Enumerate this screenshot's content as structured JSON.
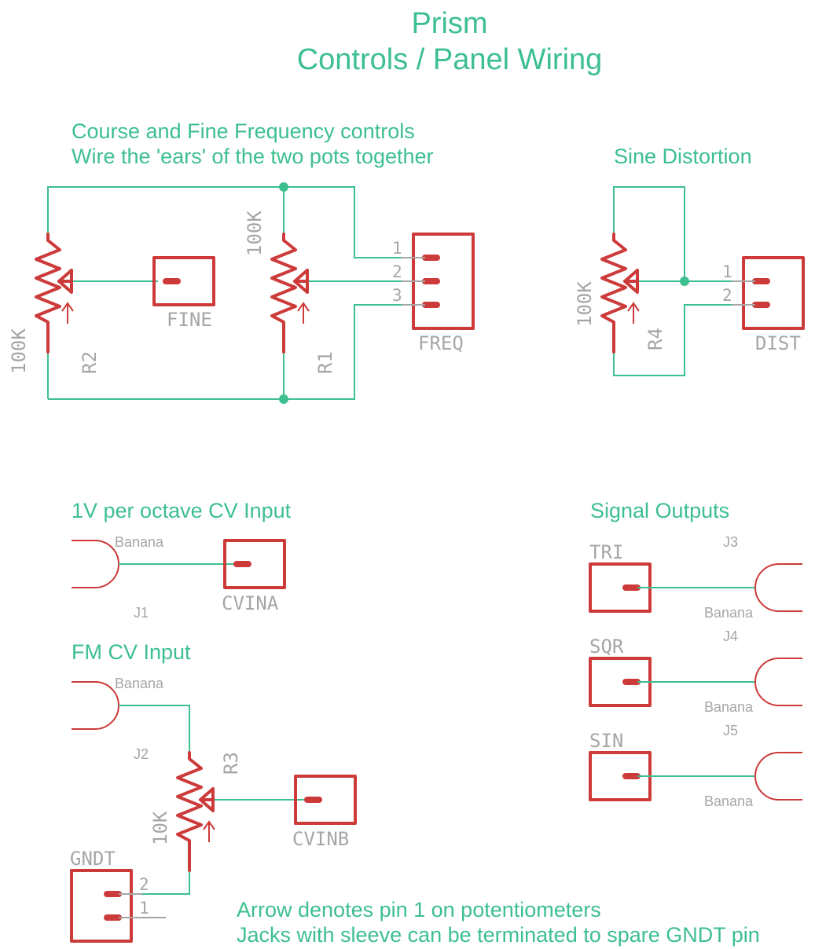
{
  "title": {
    "line1": "Prism",
    "line2": "Controls / Panel Wiring"
  },
  "notes": {
    "freq_line1": "Course and Fine Frequency controls",
    "freq_line2": "Wire the 'ears' of the two pots together",
    "dist": "Sine Distortion",
    "voct": "1V per octave CV Input",
    "fm": "FM CV Input",
    "outputs": "Signal Outputs",
    "footer_line1": "Arrow denotes pin 1 on potentiometers",
    "footer_line2": "Jacks with sleeve can be terminated to spare GNDT pin"
  },
  "parts": {
    "r2_name": "R2",
    "r2_value": "100K",
    "r1_name": "R1",
    "r1_value": "100K",
    "r4_name": "R4",
    "r4_value": "100K",
    "r3_name": "R3",
    "r3_value": "10K",
    "fine": "FINE",
    "freq": "FREQ",
    "dist": "DIST",
    "cvina": "CVINA",
    "cvinb": "CVINB",
    "gndt": "GNDT",
    "tri": "TRI",
    "sqr": "SQR",
    "sin": "SIN",
    "j1": "J1",
    "j2": "J2",
    "j3": "J3",
    "j4": "J4",
    "j5": "J5",
    "banana": "Banana"
  },
  "pins": {
    "p1": "1",
    "p2": "2",
    "p3": "3"
  },
  "colors": {
    "wire": "#3dbf8f",
    "symbol": "#cc3a3a",
    "label": "#a6a6a6"
  }
}
